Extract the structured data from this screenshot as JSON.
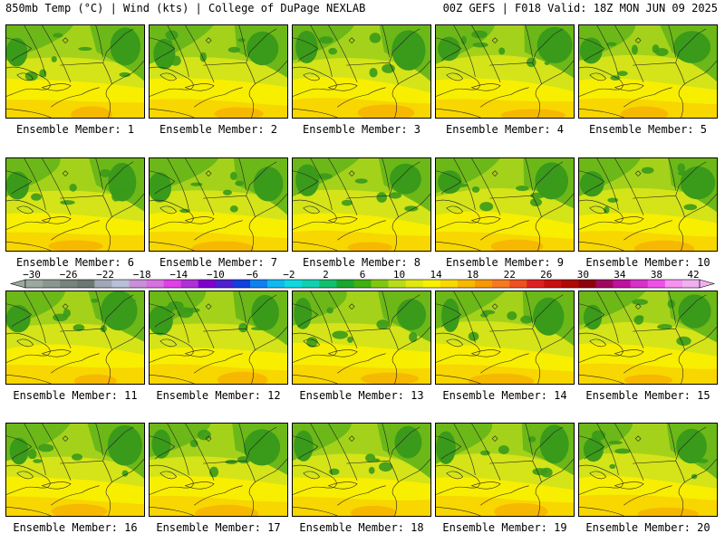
{
  "header": {
    "left": "850mb Temp (°C) | Wind (kts) | College of DuPage NEXLAB",
    "right": "00Z GEFS | F018 Valid: 18Z MON JUN 09 2025"
  },
  "panels": [
    {
      "label": "Ensemble Member: 1"
    },
    {
      "label": "Ensemble Member: 2"
    },
    {
      "label": "Ensemble Member: 3"
    },
    {
      "label": "Ensemble Member: 4"
    },
    {
      "label": "Ensemble Member: 5"
    },
    {
      "label": "Ensemble Member: 6"
    },
    {
      "label": "Ensemble Member: 7"
    },
    {
      "label": "Ensemble Member: 8"
    },
    {
      "label": "Ensemble Member: 9"
    },
    {
      "label": "Ensemble Member: 10"
    },
    {
      "label": "Ensemble Member: 11"
    },
    {
      "label": "Ensemble Member: 12"
    },
    {
      "label": "Ensemble Member: 13"
    },
    {
      "label": "Ensemble Member: 14"
    },
    {
      "label": "Ensemble Member: 15"
    },
    {
      "label": "Ensemble Member: 16"
    },
    {
      "label": "Ensemble Member: 17"
    },
    {
      "label": "Ensemble Member: 18"
    },
    {
      "label": "Ensemble Member: 19"
    },
    {
      "label": "Ensemble Member: 20"
    }
  ],
  "colorbar": {
    "tick_labels": [
      "−30",
      "−26",
      "−22",
      "−18",
      "−14",
      "−10",
      "−6",
      "−2",
      "2",
      "6",
      "10",
      "14",
      "18",
      "22",
      "26",
      "30",
      "34",
      "38",
      "42"
    ],
    "colors": [
      "#9aa8a0",
      "#8a9690",
      "#77837d",
      "#6b7772",
      "#a0a8b8",
      "#b8c0d8",
      "#c890d8",
      "#d870e0",
      "#e040e8",
      "#b030d8",
      "#8000d0",
      "#5020d0",
      "#1040e0",
      "#1080f0",
      "#10b8f0",
      "#10d8e0",
      "#10d0b0",
      "#10c070",
      "#18a830",
      "#40b010",
      "#80c810",
      "#b8dc18",
      "#e0e810",
      "#f8f000",
      "#f8d800",
      "#f8b800",
      "#f89800",
      "#f87820",
      "#f05020",
      "#e02020",
      "#c81010",
      "#b00808",
      "#900010",
      "#a00860",
      "#c010a0",
      "#d830c8",
      "#f050e8",
      "#f890f0",
      "#f0b0f0"
    ],
    "units": "°C"
  },
  "map_colors": {
    "dark_green": "#3a9a1a",
    "mid_green": "#6cb818",
    "light_green": "#a4d21a",
    "yellow_green": "#d4e418",
    "yellow": "#f8ee00",
    "gold": "#f8d600",
    "orange": "#f6b800"
  }
}
